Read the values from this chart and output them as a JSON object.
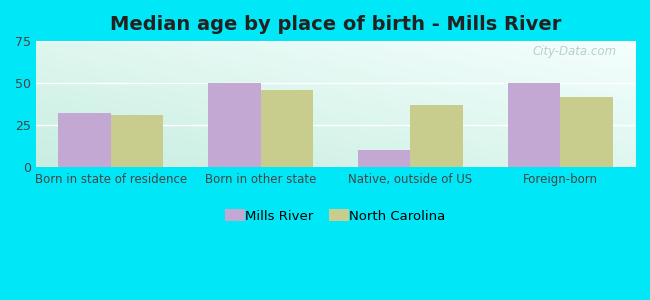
{
  "title": "Median age by place of birth - Mills River",
  "categories": [
    "Born in state of residence",
    "Born in other state",
    "Native, outside of US",
    "Foreign-born"
  ],
  "mills_river": [
    32,
    50,
    10,
    50
  ],
  "north_carolina": [
    31,
    46,
    37,
    42
  ],
  "mills_river_color": "#c4a8d4",
  "north_carolina_color": "#c8cc8c",
  "ylim": [
    0,
    75
  ],
  "yticks": [
    0,
    25,
    50,
    75
  ],
  "background_outer": "#00e8f8",
  "grid_color": "#ffffff",
  "title_fontsize": 14,
  "legend_labels": [
    "Mills River",
    "North Carolina"
  ],
  "bar_width": 0.35,
  "watermark": "City-Data.com",
  "gradient_colors": [
    "#c8eee0",
    "#f5fffe"
  ],
  "tick_fontsize": 8.5,
  "ytick_fontsize": 9
}
